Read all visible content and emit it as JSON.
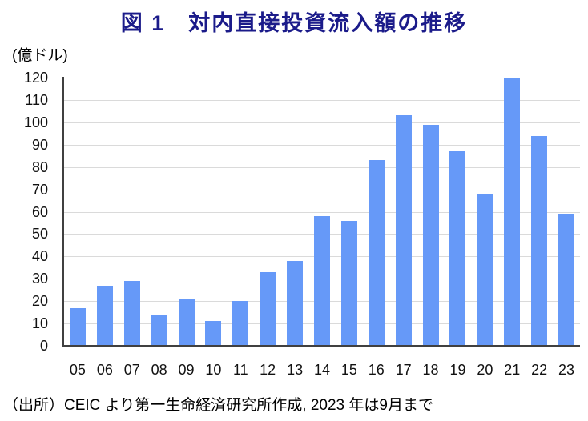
{
  "title": "図 1　対内直接投資流入額の推移",
  "unit_label": "(億ドル)",
  "source_note": "（出所）CEIC より第一生命経済研究所作成, 2023 年は9月まで",
  "colors": {
    "title_text": "#1B1B8A",
    "bar_fill": "#6699F8",
    "grid_line": "#DADADA",
    "axis_line": "#404040",
    "tick_text": "#111111"
  },
  "chart_data": {
    "type": "bar",
    "title": "図 1　対内直接投資流入額の推移",
    "xlabel": "",
    "ylabel": "(億ドル)",
    "categories": [
      "05",
      "06",
      "07",
      "08",
      "09",
      "10",
      "11",
      "12",
      "13",
      "14",
      "15",
      "16",
      "17",
      "18",
      "19",
      "20",
      "21",
      "22",
      "23"
    ],
    "values": [
      17,
      27,
      29,
      14,
      21,
      11,
      20,
      33,
      38,
      58,
      56,
      83,
      103,
      99,
      87,
      68,
      120,
      94,
      59
    ],
    "ylim": [
      0,
      120
    ],
    "ytick_step": 10,
    "grid": true,
    "legend": "none"
  }
}
